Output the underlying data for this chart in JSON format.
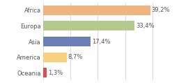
{
  "categories": [
    "Africa",
    "Europa",
    "Asia",
    "America",
    "Oceania"
  ],
  "values": [
    39.2,
    33.4,
    17.4,
    8.7,
    1.3
  ],
  "labels": [
    "39,2%",
    "33,4%",
    "17,4%",
    "8,7%",
    "1,3%"
  ],
  "bar_colors": [
    "#f0b482",
    "#b5c98e",
    "#6b7eb8",
    "#f7d080",
    "#d94f4f"
  ],
  "xlim": [
    0,
    47
  ],
  "background_color": "#ffffff",
  "text_color": "#555555",
  "bar_height": 0.62,
  "label_fontsize": 6.0,
  "tick_fontsize": 6.0
}
